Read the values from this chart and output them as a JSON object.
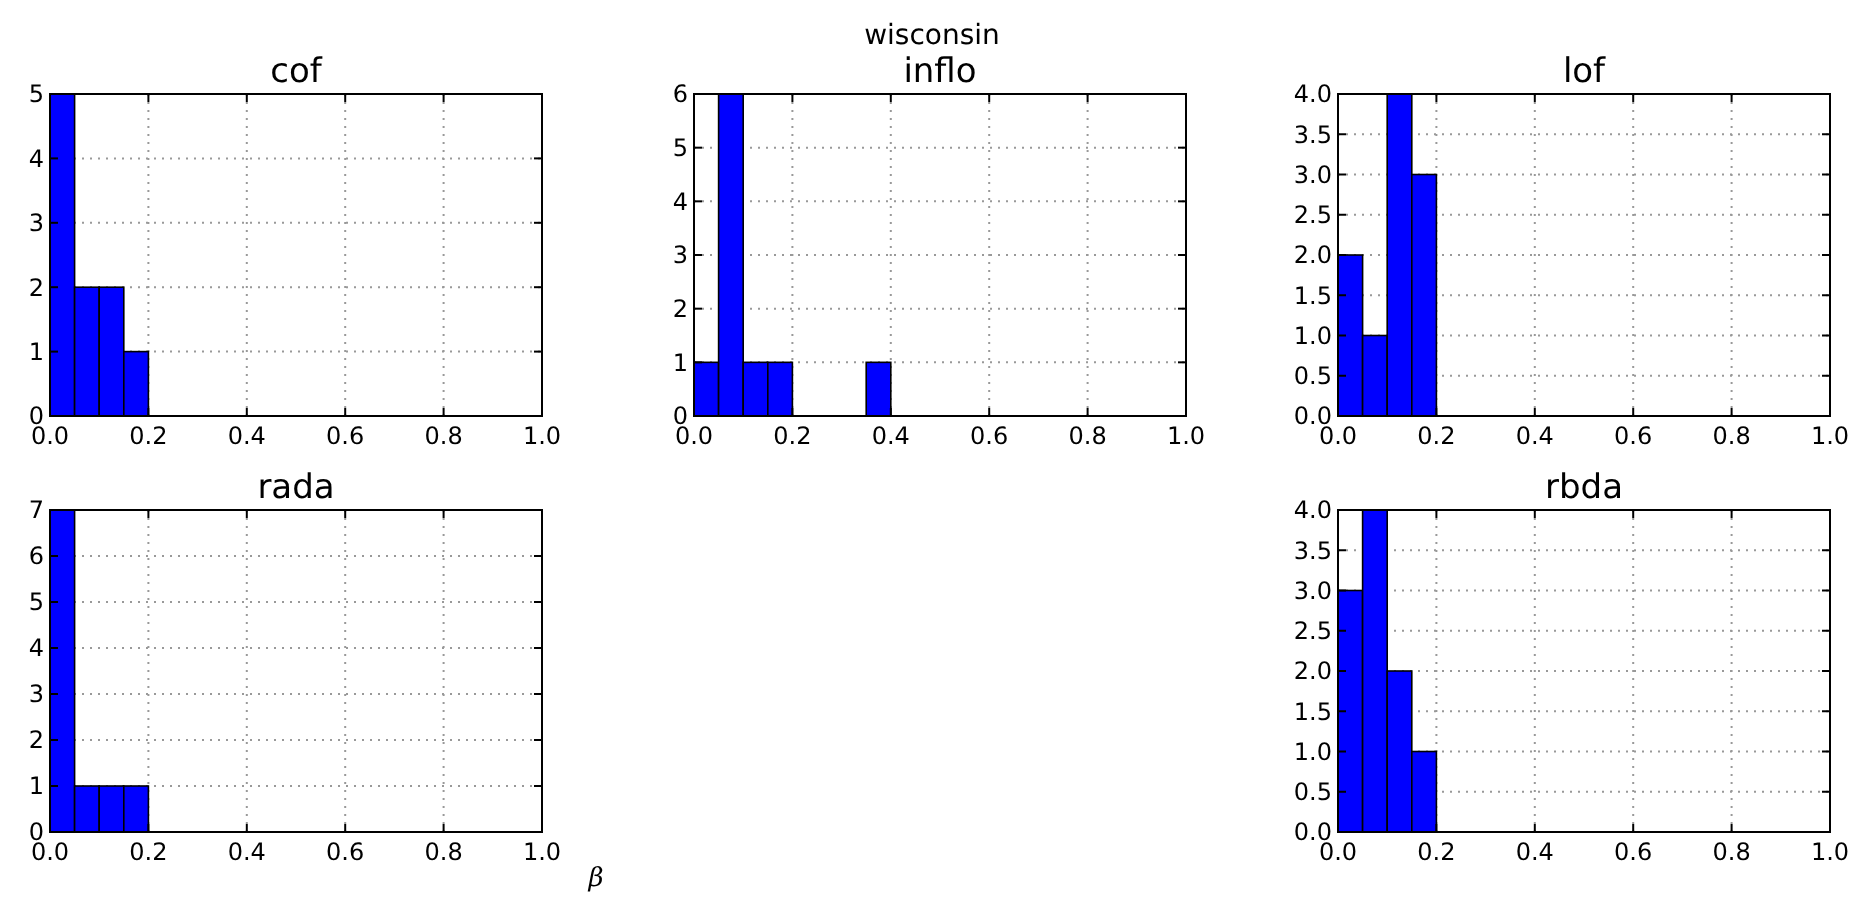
{
  "chart_data": [
    {
      "type": "histogram",
      "title": "cof",
      "annotations": [
        "wisconsin"
      ],
      "bins": [
        0,
        0.05,
        0.1,
        0.15,
        0.2
      ],
      "values": [
        5,
        2,
        2,
        1
      ],
      "color": "#0000ff",
      "xlim": [
        0,
        1
      ],
      "ylim": [
        0,
        5
      ],
      "xticks": [
        {
          "value": 0,
          "label": "0.0"
        },
        {
          "value": 0.2,
          "label": "0.2"
        },
        {
          "value": 0.4,
          "label": "0.4"
        },
        {
          "value": 0.6,
          "label": "0.6"
        },
        {
          "value": 0.8,
          "label": "0.8"
        },
        {
          "value": 1,
          "label": "1.0"
        }
      ],
      "yticks": [
        0,
        1,
        2,
        3,
        4,
        5
      ],
      "grid": true
    },
    {
      "type": "histogram",
      "title": "inflo",
      "bins": [
        0,
        0.05,
        0.1,
        0.15,
        0.2,
        0.25,
        0.3,
        0.35,
        0.4
      ],
      "values": [
        1,
        6,
        1,
        1,
        0,
        0,
        0,
        1
      ],
      "color": "#0000ff",
      "xlim": [
        0,
        1
      ],
      "ylim": [
        0,
        6
      ],
      "xticks": [
        {
          "value": 0,
          "label": "0.0"
        },
        {
          "value": 0.2,
          "label": "0.2"
        },
        {
          "value": 0.4,
          "label": "0.4"
        },
        {
          "value": 0.6,
          "label": "0.6"
        },
        {
          "value": 0.8,
          "label": "0.8"
        },
        {
          "value": 1,
          "label": "1.0"
        }
      ],
      "yticks": [
        0,
        1,
        2,
        3,
        4,
        5,
        6
      ],
      "grid": true
    },
    {
      "type": "histogram",
      "title": "lof",
      "bins": [
        0,
        0.05,
        0.1,
        0.15,
        0.2
      ],
      "values": [
        2,
        1,
        4,
        3
      ],
      "color": "#0000ff",
      "xlim": [
        0,
        1
      ],
      "ylim": [
        0,
        4
      ],
      "xticks": [
        {
          "value": 0,
          "label": "0.0"
        },
        {
          "value": 0.2,
          "label": "0.2"
        },
        {
          "value": 0.4,
          "label": "0.4"
        },
        {
          "value": 0.6,
          "label": "0.6"
        },
        {
          "value": 0.8,
          "label": "0.8"
        },
        {
          "value": 1,
          "label": "1.0"
        }
      ],
      "yticks": [
        {
          "value": 0,
          "label": "0.0"
        },
        {
          "value": 0.5,
          "label": "0.5"
        },
        {
          "value": 1,
          "label": "1.0"
        },
        {
          "value": 1.5,
          "label": "1.5"
        },
        {
          "value": 2,
          "label": "2.0"
        },
        {
          "value": 2.5,
          "label": "2.5"
        },
        {
          "value": 3,
          "label": "3.0"
        },
        {
          "value": 3.5,
          "label": "3.5"
        },
        {
          "value": 4,
          "label": "4.0"
        }
      ],
      "grid": true
    },
    {
      "type": "histogram",
      "title": "rada",
      "xlabel": "β",
      "bins": [
        0,
        0.05,
        0.1,
        0.15,
        0.2
      ],
      "values": [
        7,
        1,
        1,
        1
      ],
      "color": "#0000ff",
      "xlim": [
        0,
        1
      ],
      "ylim": [
        0,
        7
      ],
      "xticks": [
        {
          "value": 0,
          "label": "0.0"
        },
        {
          "value": 0.2,
          "label": "0.2"
        },
        {
          "value": 0.4,
          "label": "0.4"
        },
        {
          "value": 0.6,
          "label": "0.6"
        },
        {
          "value": 0.8,
          "label": "0.8"
        },
        {
          "value": 1,
          "label": "1.0"
        }
      ],
      "yticks": [
        0,
        1,
        2,
        3,
        4,
        5,
        6,
        7
      ],
      "grid": true
    },
    {
      "type": "histogram",
      "title": "rbda",
      "bins": [
        0,
        0.05,
        0.1,
        0.15,
        0.2
      ],
      "values": [
        3,
        4,
        2,
        1
      ],
      "color": "#0000ff",
      "xlim": [
        0,
        1
      ],
      "ylim": [
        0,
        4
      ],
      "xticks": [
        {
          "value": 0,
          "label": "0.0"
        },
        {
          "value": 0.2,
          "label": "0.2"
        },
        {
          "value": 0.4,
          "label": "0.4"
        },
        {
          "value": 0.6,
          "label": "0.6"
        },
        {
          "value": 0.8,
          "label": "0.8"
        },
        {
          "value": 1,
          "label": "1.0"
        }
      ],
      "yticks": [
        {
          "value": 0,
          "label": "0.0"
        },
        {
          "value": 0.5,
          "label": "0.5"
        },
        {
          "value": 1,
          "label": "1.0"
        },
        {
          "value": 1.5,
          "label": "1.5"
        },
        {
          "value": 2,
          "label": "2.0"
        },
        {
          "value": 2.5,
          "label": "2.5"
        },
        {
          "value": 3,
          "label": "3.0"
        },
        {
          "value": 3.5,
          "label": "3.5"
        },
        {
          "value": 4,
          "label": "4.0"
        }
      ],
      "grid": true
    }
  ]
}
